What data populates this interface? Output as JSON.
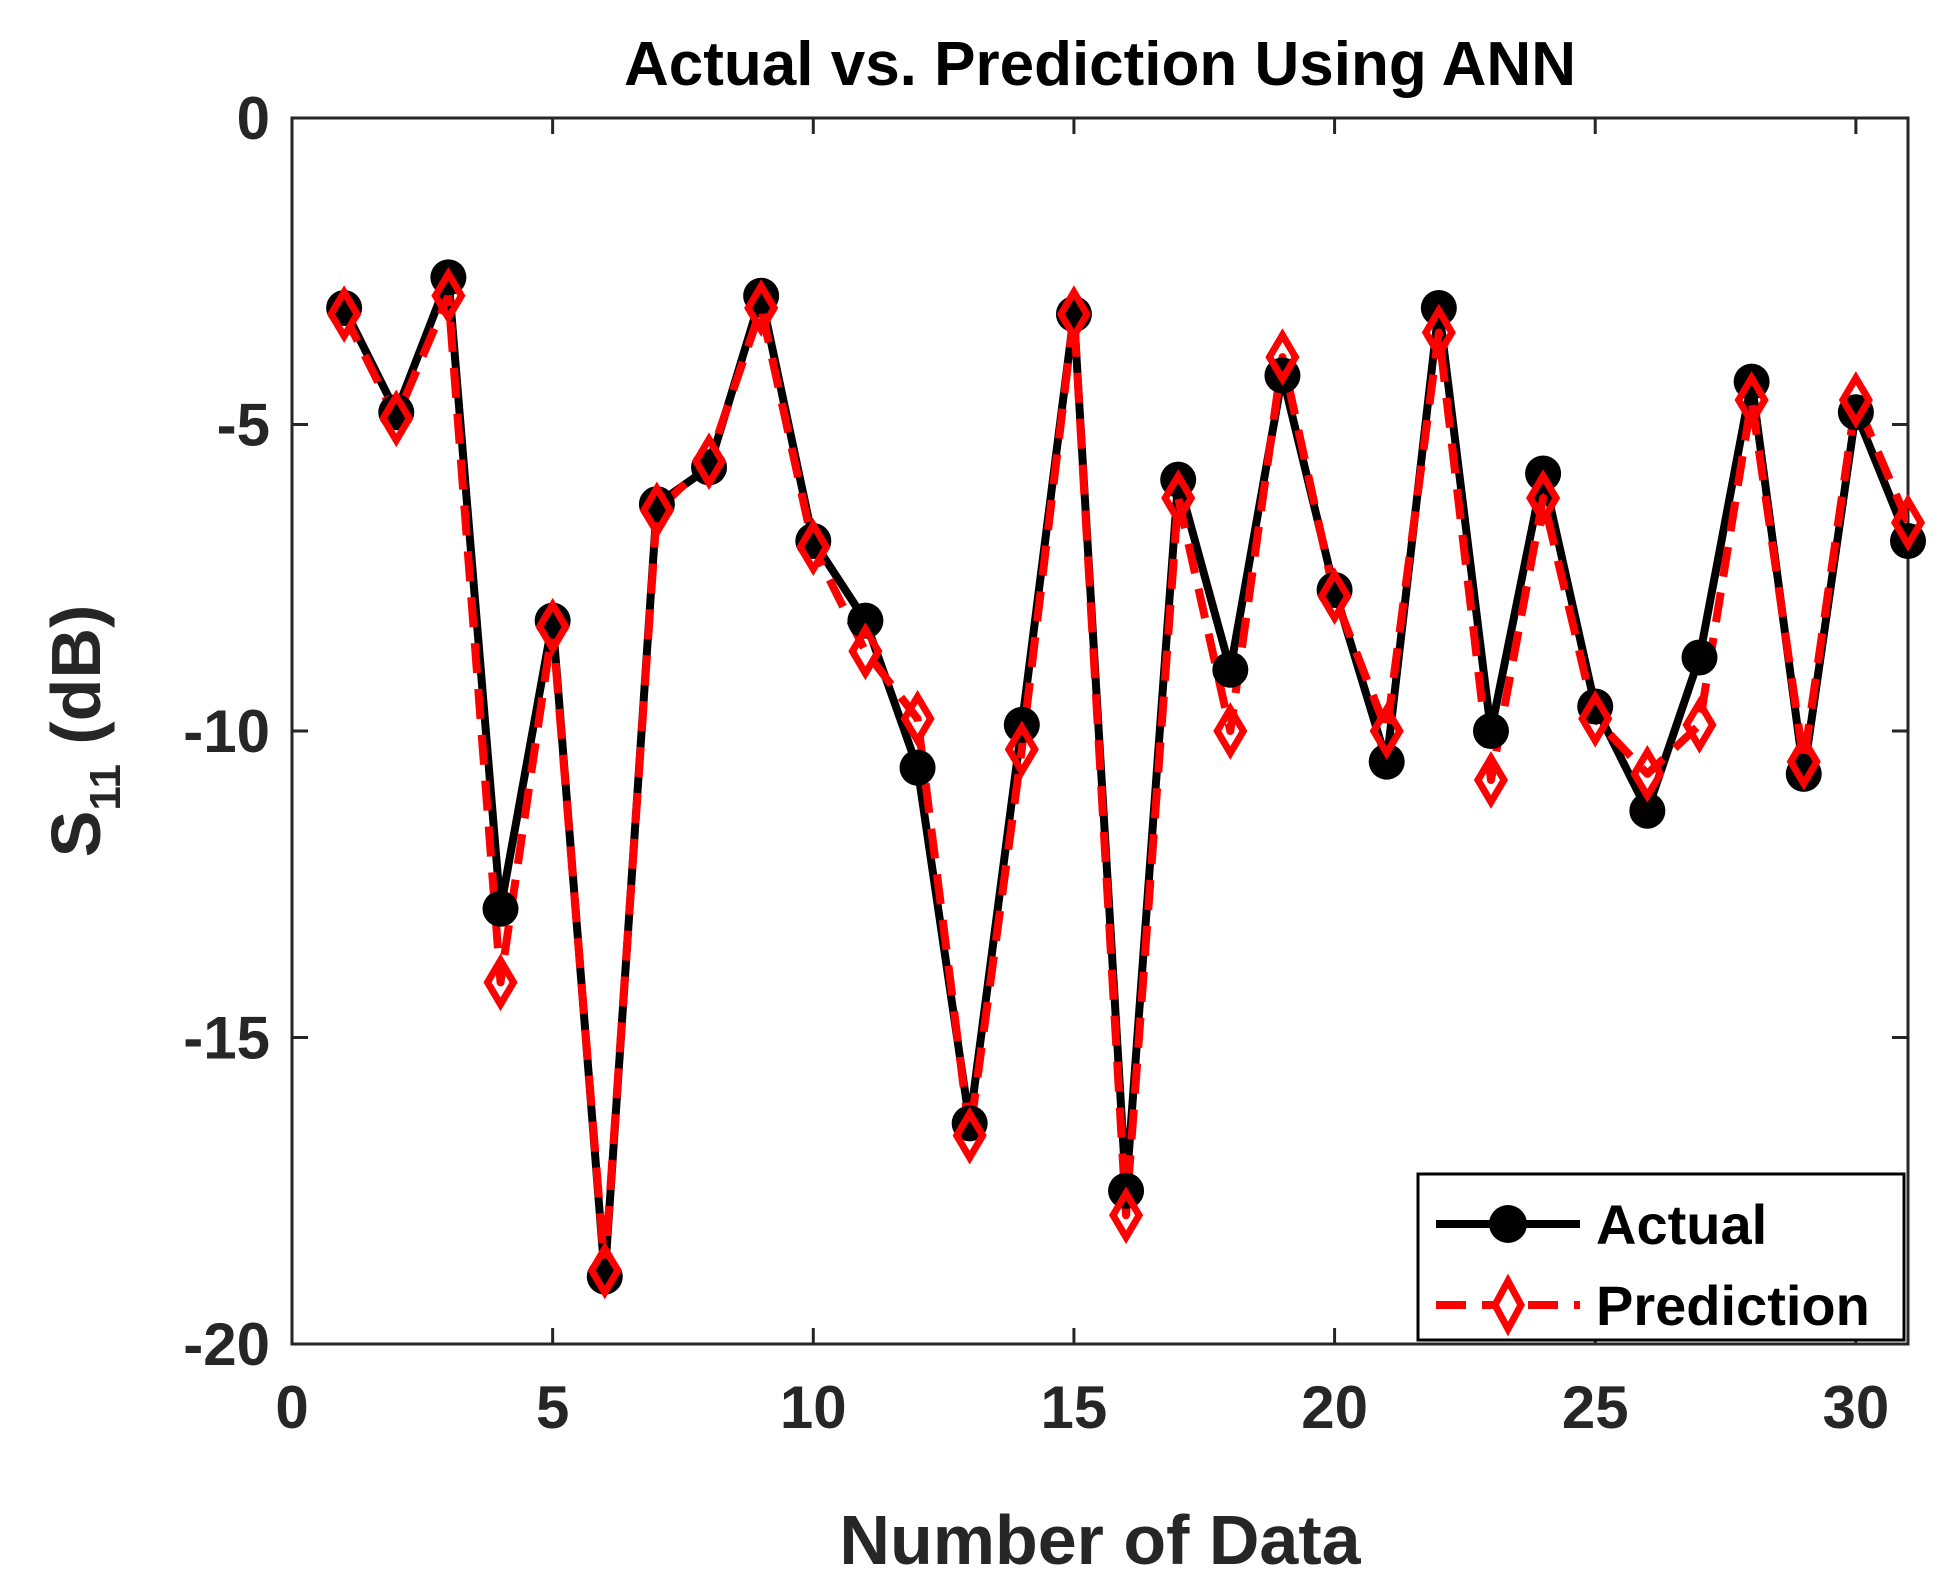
{
  "chart_data": {
    "type": "line",
    "title": "Actual vs. Prediction Using ANN",
    "xlabel": "Number of Data",
    "ylabel": {
      "main": "S",
      "subscript": "11",
      "suffix": " (dB)"
    },
    "xlim": [
      0,
      31
    ],
    "ylim": [
      -20,
      0
    ],
    "xticks": [
      0,
      5,
      10,
      15,
      20,
      25,
      30
    ],
    "yticks": [
      0,
      -5,
      -10,
      -15,
      -20
    ],
    "xtick_labels": [
      "0",
      "5",
      "10",
      "15",
      "20",
      "25",
      "30"
    ],
    "ytick_labels": [
      "0",
      "-5",
      "-10",
      "-15",
      "-20"
    ],
    "grid": false,
    "legend_position": "bottom-right",
    "x": [
      1,
      2,
      3,
      4,
      5,
      6,
      7,
      8,
      9,
      10,
      11,
      12,
      13,
      14,
      15,
      16,
      17,
      18,
      19,
      20,
      21,
      22,
      23,
      24,
      25,
      26,
      27,
      28,
      29,
      30,
      31
    ],
    "series": [
      {
        "name": "Actual",
        "color": "#000000",
        "line_style": "solid",
        "marker": "circle",
        "values": [
          -3.1,
          -4.8,
          -2.6,
          -12.9,
          -8.2,
          -18.9,
          -6.3,
          -5.7,
          -2.9,
          -6.9,
          -8.2,
          -10.6,
          -16.4,
          -9.9,
          -3.2,
          -17.5,
          -5.9,
          -9.0,
          -4.2,
          -7.7,
          -10.5,
          -3.1,
          -10.0,
          -5.8,
          -9.6,
          -11.3,
          -8.8,
          -4.3,
          -10.7,
          -4.8,
          -6.9
        ]
      },
      {
        "name": "Prediction",
        "color": "#ff0000",
        "line_style": "dashed",
        "marker": "diamond",
        "values": [
          -3.2,
          -4.9,
          -2.9,
          -14.1,
          -8.3,
          -18.8,
          -6.4,
          -5.6,
          -3.1,
          -7.0,
          -8.7,
          -9.8,
          -16.6,
          -10.3,
          -3.2,
          -17.9,
          -6.2,
          -10.0,
          -3.9,
          -7.8,
          -10.0,
          -3.5,
          -10.8,
          -6.2,
          -9.8,
          -10.7,
          -9.9,
          -4.6,
          -10.5,
          -4.6,
          -6.6
        ]
      }
    ]
  }
}
